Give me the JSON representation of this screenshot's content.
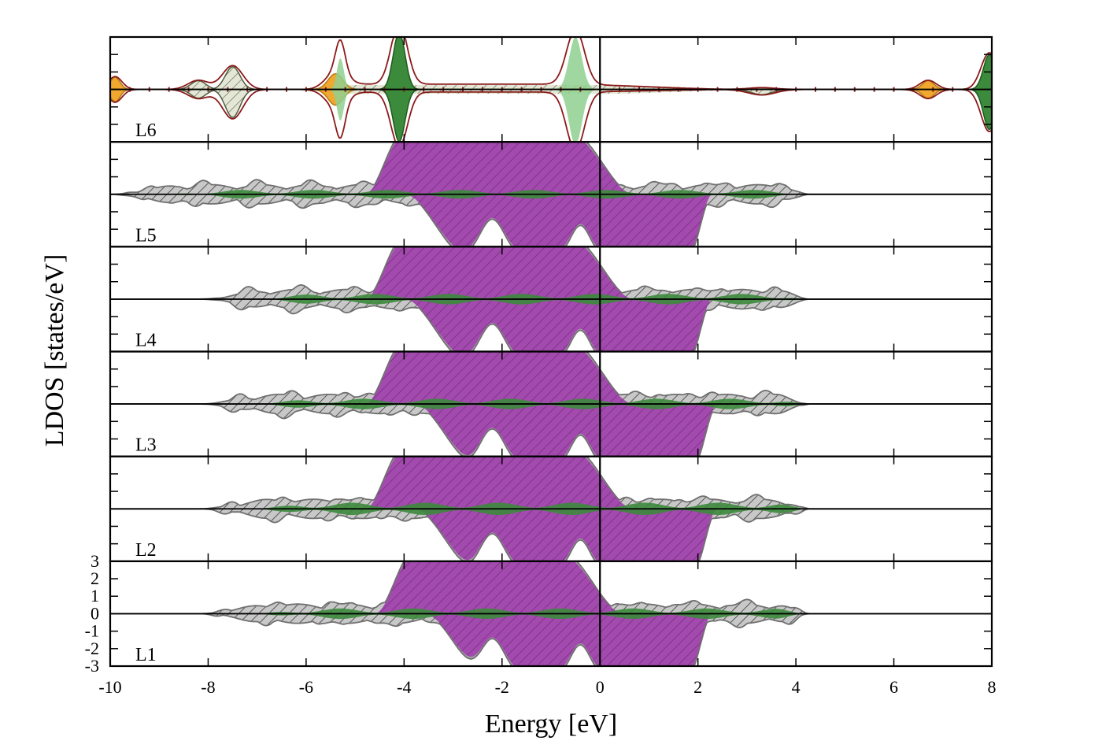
{
  "chart_data": {
    "type": "area",
    "xlabel": "Energy [eV]",
    "ylabel": "LDOS [states/eV]",
    "xlim": [
      -10,
      8
    ],
    "ylim": [
      -3,
      3
    ],
    "x_ticks": [
      -10,
      -8,
      -6,
      -4,
      -2,
      0,
      2,
      4,
      6,
      8
    ],
    "x_tick_labels": [
      "-10",
      "-8",
      "-6",
      "-4",
      "-2",
      "0",
      "2",
      "4",
      "6",
      "8"
    ],
    "y_ticks": [
      -3,
      -2,
      -1,
      0,
      1,
      2,
      3
    ],
    "y_tick_labels": [
      "-3",
      "-2",
      "-1",
      "0",
      "1",
      "2",
      "3"
    ],
    "fermi_level": 0,
    "grid": false,
    "colors": {
      "d": "#9b3fa6",
      "p": "#3c8a3c",
      "p_light": "#8fd08f",
      "s": "#f0a830",
      "total": "#9a9a9a",
      "total_line": "#707070",
      "vacuum_line": "#8b1a1a"
    },
    "panels": [
      {
        "label": "L6",
        "peaks": [
          {
            "x": -9.9,
            "up": 0.7,
            "down": 0.7,
            "w": 0.1,
            "kind": "s"
          },
          {
            "x": -8.2,
            "up": 0.5,
            "down": 0.5,
            "w": 0.15,
            "kind": "p_hatch"
          },
          {
            "x": -7.5,
            "up": 1.3,
            "down": 1.6,
            "w": 0.15,
            "kind": "p_hatch"
          },
          {
            "x": -5.4,
            "up": 0.9,
            "down": 0.9,
            "w": 0.15,
            "kind": "s"
          },
          {
            "x": -5.3,
            "up": 1.8,
            "down": 1.8,
            "w": 0.07,
            "kind": "p_light"
          },
          {
            "x": -4.1,
            "up": 3.3,
            "down": 3.0,
            "w": 0.12,
            "kind": "p"
          },
          {
            "x": -0.5,
            "up": 3.0,
            "down": 3.2,
            "w": 0.13,
            "kind": "p_light"
          },
          {
            "x": 3.3,
            "up": 0.1,
            "down": 0.3,
            "w": 0.2,
            "kind": "p_hatch"
          },
          {
            "x": 6.7,
            "up": 0.5,
            "down": 0.5,
            "w": 0.12,
            "kind": "s"
          },
          {
            "x": 7.95,
            "up": 2.0,
            "down": 2.3,
            "w": 0.12,
            "kind": "p"
          }
        ]
      },
      {
        "label": "L5",
        "band": {
          "lo": -4.8,
          "hi": 0.3,
          "up": 3.4,
          "lo2": -4.0,
          "hi2": 2.2,
          "down": 3.4
        },
        "p_amp": 0.25,
        "tail_start": -10.0,
        "tail_end": 4.3
      },
      {
        "label": "L4",
        "band": {
          "lo": -4.8,
          "hi": 0.3,
          "up": 3.4,
          "lo2": -4.0,
          "hi2": 2.2,
          "down": 3.4
        },
        "p_amp": 0.3,
        "tail_start": -8.2,
        "tail_end": 4.3
      },
      {
        "label": "L3",
        "band": {
          "lo": -4.8,
          "hi": 0.3,
          "up": 3.4,
          "lo2": -3.8,
          "hi2": 2.3,
          "down": 3.4
        },
        "p_amp": 0.3,
        "tail_start": -8.2,
        "tail_end": 4.3
      },
      {
        "label": "L2",
        "band": {
          "lo": -4.8,
          "hi": 0.3,
          "up": 3.4,
          "lo2": -3.8,
          "hi2": 2.3,
          "down": 3.4
        },
        "p_amp": 0.35,
        "tail_start": -8.2,
        "tail_end": 4.3
      },
      {
        "label": "L1",
        "band": {
          "lo": -4.6,
          "hi": 0.1,
          "up": 3.4,
          "lo2": -3.6,
          "hi2": 2.2,
          "down": 3.4
        },
        "p_amp": 0.3,
        "tail_start": -8.2,
        "tail_end": 4.3
      }
    ]
  }
}
